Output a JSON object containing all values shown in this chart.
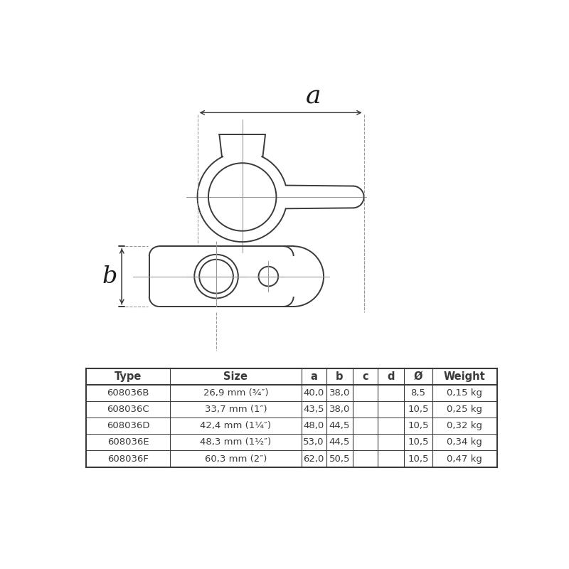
{
  "bg_color": "#ffffff",
  "line_color": "#3a3a3a",
  "dashed_color": "#999999",
  "table_headers": [
    "Type",
    "Size",
    "a",
    "b",
    "c",
    "d",
    "Ø",
    "Weight"
  ],
  "table_rows": [
    [
      "608036B",
      "26,9 mm (¾″)",
      "40,0",
      "38,0",
      "",
      "",
      "8,5",
      "0,15 kg"
    ],
    [
      "608036C",
      "33,7 mm (1″)",
      "43,5",
      "38,0",
      "",
      "",
      "10,5",
      "0,25 kg"
    ],
    [
      "608036D",
      "42,4 mm (1¼″)",
      "48,0",
      "44,5",
      "",
      "",
      "10,5",
      "0,32 kg"
    ],
    [
      "608036E",
      "48,3 mm (1½″)",
      "53,0",
      "44,5",
      "",
      "",
      "10,5",
      "0,34 kg"
    ],
    [
      "608036F",
      "60,3 mm (2″)",
      "62,0",
      "50,5",
      "",
      "",
      "10,5",
      "0,47 kg"
    ]
  ],
  "dim_label_a": "a",
  "dim_label_b": "b"
}
